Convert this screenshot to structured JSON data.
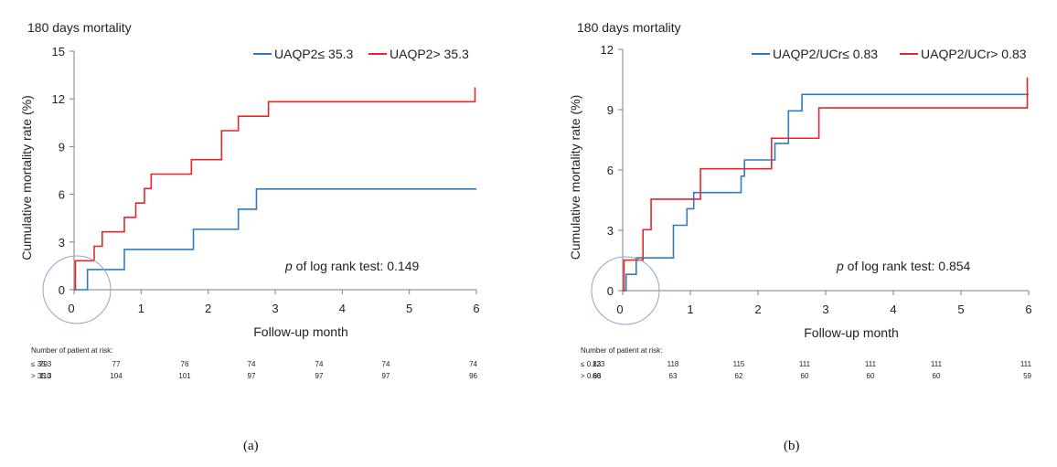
{
  "chart_data": [
    {
      "type": "line",
      "title": "180 days mortality",
      "xlabel": "Follow-up month",
      "ylabel": "Cumulative mortality rate (%)",
      "xlim": [
        0,
        6
      ],
      "ylim": [
        0,
        15
      ],
      "xticks": [
        "0",
        "1",
        "2",
        "3",
        "4",
        "5",
        "6"
      ],
      "yticks": [
        "0",
        "3",
        "6",
        "9",
        "12",
        "15"
      ],
      "grid": false,
      "legend_position": "top-right",
      "annotation_italic": "p",
      "annotation_text": " of log rank test: 0.149",
      "series": [
        {
          "name": "UAQP2≤ 35.3",
          "color": "#2e7bbf",
          "x": [
            0,
            0.2,
            0.75,
            1.78,
            2.45,
            2.72,
            6
          ],
          "y": [
            0,
            1.27,
            2.53,
            3.8,
            5.06,
            6.33,
            6.33
          ]
        },
        {
          "name": "UAQP2> 35.3",
          "color": "#e8262a",
          "x": [
            0,
            0.02,
            0.3,
            0.42,
            0.75,
            0.92,
            1.05,
            1.15,
            1.75,
            2.2,
            2.45,
            2.9,
            5.98
          ],
          "y": [
            0,
            1.82,
            2.73,
            3.64,
            4.55,
            5.45,
            6.36,
            7.27,
            8.18,
            10.0,
            10.91,
            11.82,
            12.73
          ]
        }
      ],
      "risk_table": {
        "header": "Number  of patient at risk:",
        "x": [
          0,
          1,
          2,
          3,
          4,
          5,
          6
        ],
        "rows": [
          {
            "label": "≤ 35.3",
            "values": [
              "79",
              "77",
              "76",
              "74",
              "74",
              "74",
              "74"
            ]
          },
          {
            "label": "> 35.3",
            "values": [
              "110",
              "104",
              "101",
              "97",
              "97",
              "97",
              "96"
            ]
          }
        ]
      },
      "panel_label": "(a)"
    },
    {
      "type": "line",
      "title": "180 days mortality",
      "xlabel": "Follow-up month",
      "ylabel": "Cumulative mortality rate (%)",
      "xlim": [
        0,
        6
      ],
      "ylim": [
        0,
        12
      ],
      "xticks": [
        "0",
        "1",
        "2",
        "3",
        "4",
        "5",
        "6"
      ],
      "yticks": [
        "0",
        "3",
        "6",
        "9",
        "12"
      ],
      "grid": false,
      "legend_position": "top-right",
      "annotation_italic": "p",
      "annotation_text": " of log rank test: 0.854",
      "series": [
        {
          "name": "UAQP2/UCr≤ 0.83",
          "color": "#2e7bbf",
          "x": [
            0,
            0.05,
            0.2,
            0.75,
            0.95,
            1.05,
            1.75,
            1.8,
            2.25,
            2.45,
            2.65,
            2.75,
            6
          ],
          "y": [
            0,
            0.81,
            1.63,
            3.25,
            4.07,
            4.88,
            5.69,
            6.5,
            7.32,
            8.94,
            9.76,
            9.76,
            9.76
          ]
        },
        {
          "name": "UAQP2/UCr> 0.83",
          "color": "#e8262a",
          "x": [
            0,
            0.02,
            0.3,
            0.42,
            1.15,
            2.2,
            2.9,
            5.98
          ],
          "y": [
            0,
            1.52,
            3.03,
            4.55,
            6.06,
            7.58,
            9.09,
            10.61
          ]
        }
      ],
      "risk_table": {
        "header": "Number  of patient at risk:",
        "x": [
          0,
          1,
          2,
          3,
          4,
          5,
          6
        ],
        "rows": [
          {
            "label": "≤ 0.83",
            "values": [
              "123",
              "118",
              "115",
              "111",
              "111",
              "111",
              "111"
            ]
          },
          {
            "label": "> 0.83",
            "values": [
              "66",
              "63",
              "62",
              "60",
              "60",
              "60",
              "59"
            ]
          }
        ]
      },
      "panel_label": "(b)"
    }
  ]
}
